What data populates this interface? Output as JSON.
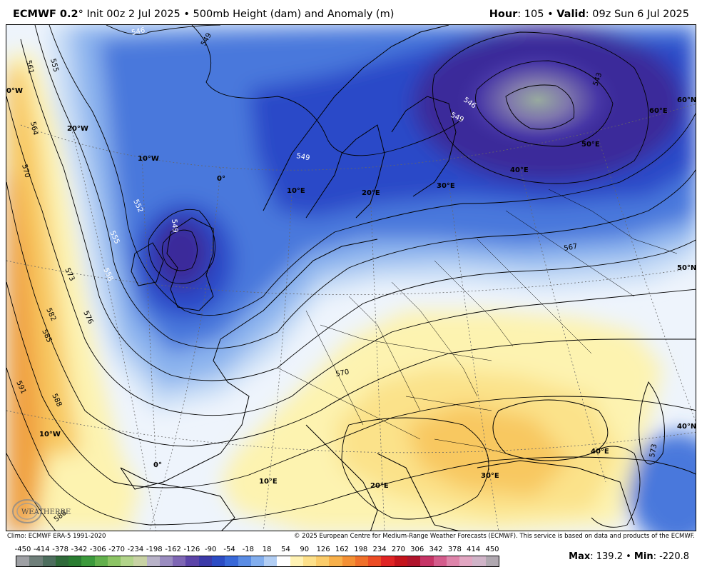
{
  "header": {
    "model": "ECMWF 0.2",
    "degree": "°",
    "init": " Init 00z 2 Jul 2025 • 500mb Height (dam) and Anomaly (m)",
    "hour_label": "Hour",
    "hour_value": ": 105 • ",
    "valid_label": "Valid",
    "valid_value": ": 09z Sun 6 Jul 2025"
  },
  "map": {
    "graticule_labels": {
      "lon_0_tl": "0°W",
      "lon_20w": "20°W",
      "lon_10w_top": "10°W",
      "lon_0": "0°",
      "lon_10e_top": "10°E",
      "lon_20e_top": "20°E",
      "lon_30e_top": "30°E",
      "lon_40e_top": "40°E",
      "lon_50e_top": "50°E",
      "lon_60e_top": "60°E",
      "lat_60n": "60°N",
      "lat_50n": "50°N",
      "lat_40n": "40°N",
      "lon_10w_bot": "10°W",
      "lon_0_bot": "0°",
      "lon_10e_bot": "10°E",
      "lon_20e_bot": "20°E",
      "lon_30e_bot": "30°E",
      "lon_40e_bot": "40°E"
    },
    "contour_labels": {
      "c546_top": "546",
      "c549_top": "549",
      "c555": "555",
      "c561": "561",
      "c564": "564",
      "c570": "570",
      "c573": "573",
      "c576": "576",
      "c582": "582",
      "c585": "585",
      "c588": "588",
      "c591": "591",
      "c552_w": "552",
      "c555_w": "555",
      "c558_w": "558",
      "c549_uk": "549",
      "c549_scand": "549",
      "c546_rus": "546",
      "c549_rus": "549",
      "c543_rus": "543",
      "c567_e": "567",
      "c573_e": "573",
      "c570_c": "570",
      "c588_bl": "588"
    },
    "colors": {
      "deep_purple": "#3a2a9a",
      "dark_blue": "#2a48c8",
      "mid_blue": "#4a78dc",
      "light_blue": "#8cb4ee",
      "pale_blue": "#c8ddf6",
      "near_white": "#eef4fc",
      "pale_yellow": "#fdf3b0",
      "yellow": "#fbe28a",
      "orange_yellow": "#f8c860",
      "orange": "#f0a040"
    }
  },
  "logo": {
    "text": "WEATHERBELL"
  },
  "credits": {
    "left": "Climo: ECMWF ERA-5 1991-2020",
    "right": "© 2025 European Centre for Medium-Range Weather Forecasts (ECMWF). This service is based on data and products of the ECMWF."
  },
  "legend": {
    "ticks": [
      "-450",
      "-414",
      "-378",
      "-342",
      "-306",
      "-270",
      "-234",
      "-198",
      "-162",
      "-126",
      "-90",
      "-54",
      "-18",
      "18",
      "54",
      "90",
      "126",
      "162",
      "198",
      "234",
      "270",
      "306",
      "342",
      "378",
      "414",
      "450"
    ],
    "colors": [
      "#9ea0a4",
      "#6f7f7a",
      "#4d6e5e",
      "#2f6a3a",
      "#2a7d32",
      "#3c9a3c",
      "#62b04c",
      "#8cc464",
      "#b2d48a",
      "#c8d2a4",
      "#b8b2c8",
      "#9a8cc0",
      "#7e66b4",
      "#5c44a8",
      "#3c3aa8",
      "#2c4cc4",
      "#3868d8",
      "#5a8ce4",
      "#82aeee",
      "#b2cef4",
      "#ffffff",
      "#fff2b4",
      "#fde08a",
      "#fbcc6a",
      "#f8b04a",
      "#f49034",
      "#f0702a",
      "#ec4c24",
      "#e02424",
      "#c4141c",
      "#b0142c",
      "#c63466",
      "#d45c8c",
      "#de84aa",
      "#e2a6c2",
      "#d0b4c8",
      "#b0a8b0"
    ]
  },
  "stats": {
    "max_label": "Max",
    "max_value": ": 139.2 • ",
    "min_label": "Min",
    "min_value": ": -220.8"
  }
}
